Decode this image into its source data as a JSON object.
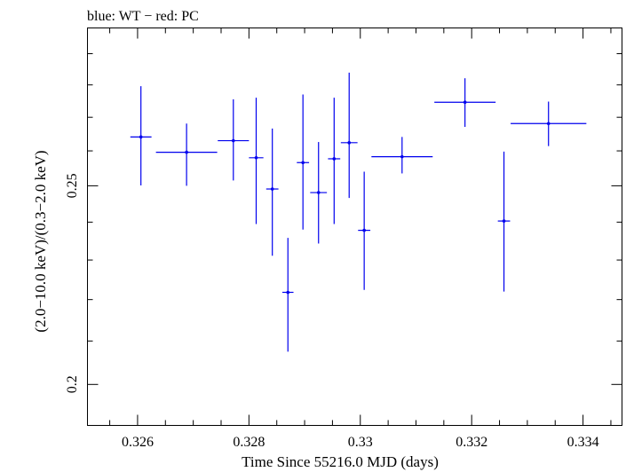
{
  "chart_data": {
    "type": "scatter",
    "title": "blue: WT − red: PC",
    "xlabel": "Time Since 55216.0 MJD (days)",
    "ylabel": "(2.0−10.0 keV)/(0.3−2.0 keV)",
    "xlim": [
      0.3251,
      0.3347
    ],
    "ylim": [
      0.191,
      0.2985
    ],
    "y_scale": "log",
    "x_ticks": [
      0.326,
      0.328,
      0.33,
      0.332,
      0.334
    ],
    "x_tick_labels": [
      "0.326",
      "0.328",
      "0.33",
      "0.332",
      "0.334"
    ],
    "y_ticks": [
      0.2,
      0.25
    ],
    "y_tick_labels": [
      "0.2",
      "0.25"
    ],
    "grid": false,
    "legend": "none",
    "series": [
      {
        "name": "WT",
        "color": "#0000ee",
        "points": [
          {
            "x": 0.32606,
            "y": 0.2641,
            "xerr": 0.00019,
            "yerr_low": 0.014,
            "yerr_high": 0.0155
          },
          {
            "x": 0.32688,
            "y": 0.2596,
            "xerr": 0.00055,
            "yerr_low": 0.0096,
            "yerr_high": 0.0085
          },
          {
            "x": 0.32772,
            "y": 0.263,
            "xerr": 0.00028,
            "yerr_low": 0.0115,
            "yerr_high": 0.0125
          },
          {
            "x": 0.32813,
            "y": 0.258,
            "xerr": 0.00013,
            "yerr_low": 0.0185,
            "yerr_high": 0.018
          },
          {
            "x": 0.32842,
            "y": 0.2491,
            "xerr": 0.00011,
            "yerr_low": 0.018,
            "yerr_high": 0.0175
          },
          {
            "x": 0.3287,
            "y": 0.2218,
            "xerr": 0.0001,
            "yerr_low": 0.0143,
            "yerr_high": 0.014
          },
          {
            "x": 0.32897,
            "y": 0.2566,
            "xerr": 0.00011,
            "yerr_low": 0.0186,
            "yerr_high": 0.0204
          },
          {
            "x": 0.32925,
            "y": 0.2481,
            "xerr": 0.00015,
            "yerr_low": 0.0138,
            "yerr_high": 0.0145
          },
          {
            "x": 0.32953,
            "y": 0.2577,
            "xerr": 0.00011,
            "yerr_low": 0.0182,
            "yerr_high": 0.0183
          },
          {
            "x": 0.3298,
            "y": 0.2624,
            "xerr": 0.00015,
            "yerr_low": 0.0158,
            "yerr_high": 0.0215
          },
          {
            "x": 0.33007,
            "y": 0.2378,
            "xerr": 0.00011,
            "yerr_low": 0.0154,
            "yerr_high": 0.0162
          },
          {
            "x": 0.33075,
            "y": 0.2583,
            "xerr": 0.00055,
            "yerr_low": 0.0048,
            "yerr_high": 0.0058
          },
          {
            "x": 0.33188,
            "y": 0.2746,
            "xerr": 0.00055,
            "yerr_low": 0.0075,
            "yerr_high": 0.0075
          },
          {
            "x": 0.33258,
            "y": 0.2403,
            "xerr": 0.00011,
            "yerr_low": 0.0183,
            "yerr_high": 0.0195
          },
          {
            "x": 0.33338,
            "y": 0.2681,
            "xerr": 0.00068,
            "yerr_low": 0.0067,
            "yerr_high": 0.0067
          }
        ]
      }
    ]
  }
}
